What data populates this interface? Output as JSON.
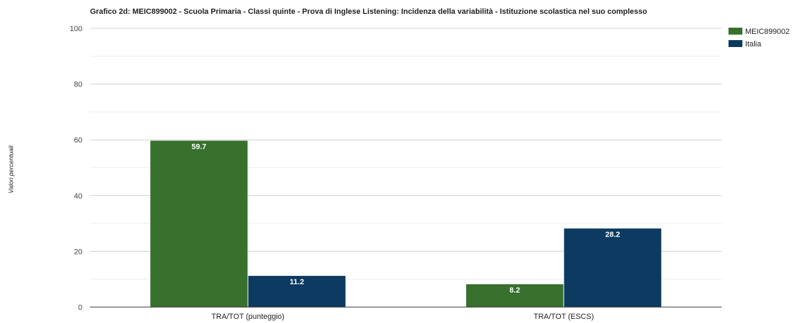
{
  "chart_data": {
    "type": "bar",
    "title": "Grafico 2d: MEIC899002 - Scuola Primaria - Classi quinte - Prova di Inglese Listening: Incidenza della variabilità - Istituzione scolastica nel suo complesso",
    "xlabel": "",
    "ylabel": "Valori percentuali",
    "ylim": [
      0,
      100
    ],
    "yticks": [
      0,
      20,
      40,
      60,
      80,
      100
    ],
    "grid": true,
    "legend_position": "top-right",
    "categories": [
      "TRA/TOT (punteggio)",
      "TRA/TOT (ESCS)"
    ],
    "series": [
      {
        "name": "MEIC899002",
        "color": "#38702e",
        "values": [
          59.7,
          8.2
        ]
      },
      {
        "name": "Italia",
        "color": "#0c3a60",
        "values": [
          11.2,
          28.2
        ]
      }
    ]
  }
}
